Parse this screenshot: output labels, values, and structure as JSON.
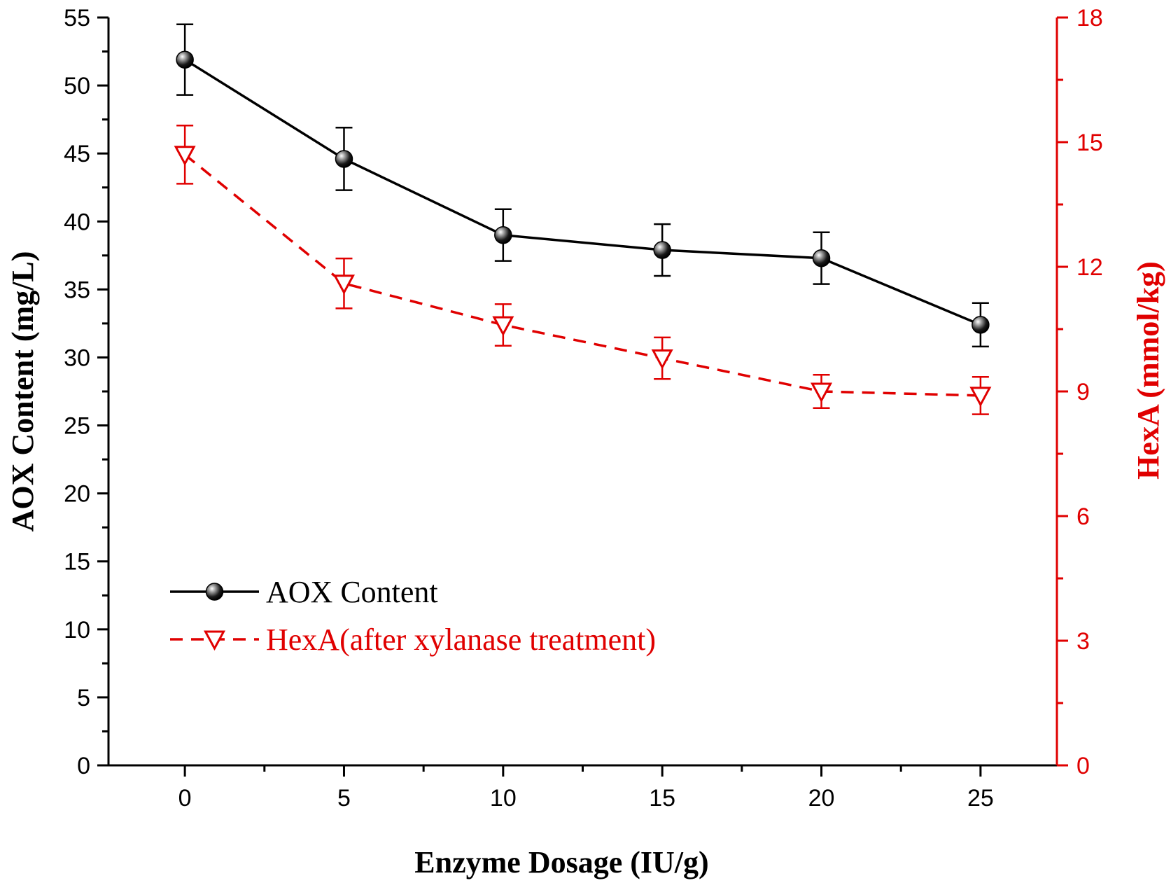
{
  "chart_data": {
    "type": "line",
    "x": [
      0,
      5,
      10,
      15,
      20,
      25
    ],
    "xlabel": "Enzyme Dosage (IU/g)",
    "xlim": [
      -2.4,
      27.4
    ],
    "x_ticks": [
      0,
      5,
      10,
      15,
      20,
      25
    ],
    "x_tick_labels": [
      "0",
      "5",
      "10",
      "15",
      "20",
      "25"
    ],
    "y_left": {
      "label": "AOX Content (mg/L)",
      "lim": [
        0,
        55
      ],
      "ticks": [
        0,
        5,
        10,
        15,
        20,
        25,
        30,
        35,
        40,
        45,
        50,
        55
      ],
      "tick_labels": [
        "0",
        "5",
        "10",
        "15",
        "20",
        "25",
        "30",
        "35",
        "40",
        "45",
        "50",
        "55"
      ],
      "color": "#000000"
    },
    "y_right": {
      "label": "HexA (mmol/kg)",
      "lim": [
        0,
        18
      ],
      "ticks": [
        0,
        3,
        6,
        9,
        12,
        15,
        18
      ],
      "tick_labels": [
        "0",
        "3",
        "6",
        "9",
        "12",
        "15",
        "18"
      ],
      "color": "#e00000"
    },
    "series": [
      {
        "name": "AOX Content",
        "axis": "left",
        "color": "#000000",
        "line_style": "solid",
        "marker": "sphere",
        "values": [
          51.9,
          44.6,
          39.0,
          37.9,
          37.3,
          32.4
        ],
        "errors": [
          2.6,
          2.3,
          1.9,
          1.9,
          1.9,
          1.6
        ]
      },
      {
        "name": "HexA(after xylanase treatment)",
        "axis": "right",
        "color": "#e00000",
        "line_style": "dashed",
        "marker": "down-triangle",
        "values": [
          14.7,
          11.6,
          10.6,
          9.8,
          9.0,
          8.9
        ],
        "errors": [
          0.7,
          0.6,
          0.5,
          0.5,
          0.4,
          0.45
        ]
      }
    ],
    "legend": {
      "placement": "lower-left",
      "entries": [
        "AOX Content",
        "HexA(after xylanase treatment)"
      ]
    },
    "grid": false
  }
}
